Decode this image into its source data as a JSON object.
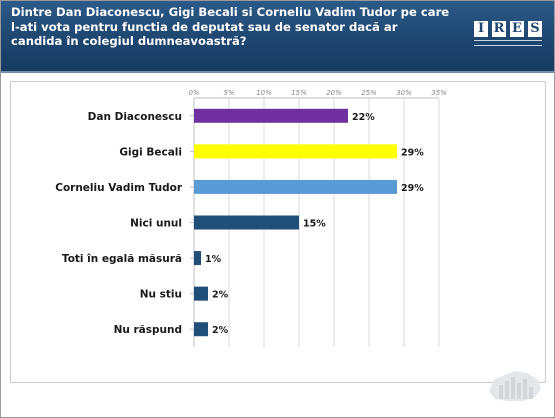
{
  "header": {
    "title": "Dintre Dan Diaconescu, Gigi Becali si Corneliu Vadim Tudor pe care l-ati vota pentru functia de deputat sau de senator dacă ar candida în colegiul dumneavoastră?",
    "logo_text": "IRES",
    "background": "#1e4670"
  },
  "chart_data": {
    "type": "bar",
    "orientation": "horizontal",
    "categories": [
      "Dan Diaconescu",
      "Gigi Becali",
      "Corneliu Vadim Tudor",
      "Nici unul",
      "Toti în egală măsură",
      "Nu stiu",
      "Nu răspund"
    ],
    "values": [
      22,
      29,
      29,
      15,
      1,
      2,
      2
    ],
    "value_labels": [
      "22%",
      "29%",
      "29%",
      "15%",
      "1%",
      "2%",
      "2%"
    ],
    "bar_colors": [
      "#7030a0",
      "#ffff00",
      "#5b9bd5",
      "#1f4e79",
      "#1f4e79",
      "#1f4e79",
      "#1f4e79"
    ],
    "xlim": [
      0,
      35
    ],
    "x_ticks": [
      0,
      5,
      10,
      15,
      20,
      25,
      30,
      35
    ],
    "x_tick_labels": [
      "0%",
      "5%",
      "10%",
      "15%",
      "20%",
      "25%",
      "30%",
      "35%"
    ],
    "x_axis_position": "top",
    "grid": true
  }
}
